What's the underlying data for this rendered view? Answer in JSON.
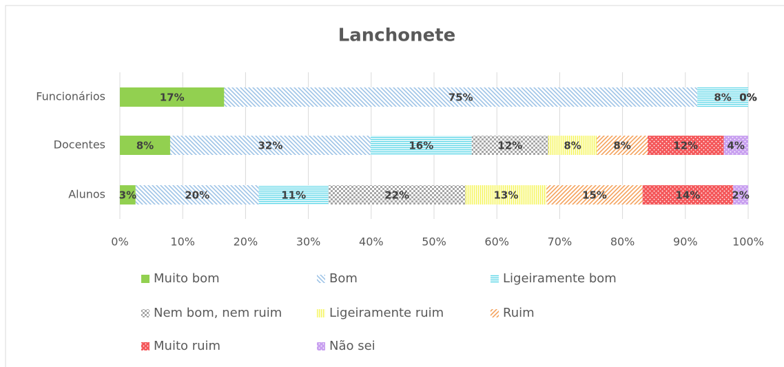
{
  "chart_data": {
    "type": "stacked-bar-horizontal",
    "title": "Lanchonete",
    "categories": [
      "Funcionários",
      "Docentes",
      "Alunos"
    ],
    "series": [
      {
        "name": "Muito bom",
        "color": "#92d050",
        "pattern": "solid",
        "values": [
          16.6,
          8.0,
          2.5
        ],
        "value_labels": [
          "17%",
          "8%",
          "3%"
        ]
      },
      {
        "name": "Bom",
        "color": "#9dc3e6",
        "pattern": "diagonal",
        "values": [
          75.3,
          31.9,
          19.6
        ],
        "value_labels": [
          "75%",
          "32%",
          "20%"
        ]
      },
      {
        "name": "Ligeiramente bom",
        "color": "#5fd7e8",
        "pattern": "horizontal",
        "values": [
          8.1,
          16.1,
          11.1
        ],
        "value_labels": [
          "8%",
          "16%",
          "11%"
        ]
      },
      {
        "name": "Nem bom, nem ruim",
        "color": "#a6a6a6",
        "pattern": "checker",
        "values": [
          0,
          12.2,
          21.8
        ],
        "value_labels": [
          "0%",
          "12%",
          "22%"
        ]
      },
      {
        "name": "Ligeiramente ruim",
        "color": "#f5f55a",
        "pattern": "vertical",
        "values": [
          0,
          7.7,
          12.9
        ],
        "value_labels": [
          "0%",
          "8%",
          "13%"
        ]
      },
      {
        "name": "Ruim",
        "color": "#f4a15a",
        "pattern": "diagonal-up",
        "values": [
          0,
          8.1,
          15.3
        ],
        "value_labels": [
          "0%",
          "8%",
          "15%"
        ]
      },
      {
        "name": "Muito ruim",
        "color": "#f4575a",
        "pattern": "dots",
        "values": [
          0,
          12.1,
          14.4
        ],
        "value_labels": [
          "0%",
          "12%",
          "14%"
        ]
      },
      {
        "name": "Não sei",
        "color": "#c9a0f0",
        "pattern": "dots",
        "values": [
          0,
          3.9,
          2.4
        ],
        "value_labels": [
          "0%",
          "4%",
          "2%"
        ]
      }
    ],
    "xlim": [
      0,
      100
    ],
    "xticks": [
      {
        "value": 0,
        "label": "0%"
      },
      {
        "value": 10,
        "label": "10%"
      },
      {
        "value": 20,
        "label": "20%"
      },
      {
        "value": 30,
        "label": "30%"
      },
      {
        "value": 40,
        "label": "40%"
      },
      {
        "value": 50,
        "label": "50%"
      },
      {
        "value": 60,
        "label": "60%"
      },
      {
        "value": 70,
        "label": "70%"
      },
      {
        "value": 80,
        "label": "80%"
      },
      {
        "value": 90,
        "label": "90%"
      },
      {
        "value": 100,
        "label": "100%"
      }
    ],
    "grid": true,
    "legend": "bottom"
  }
}
